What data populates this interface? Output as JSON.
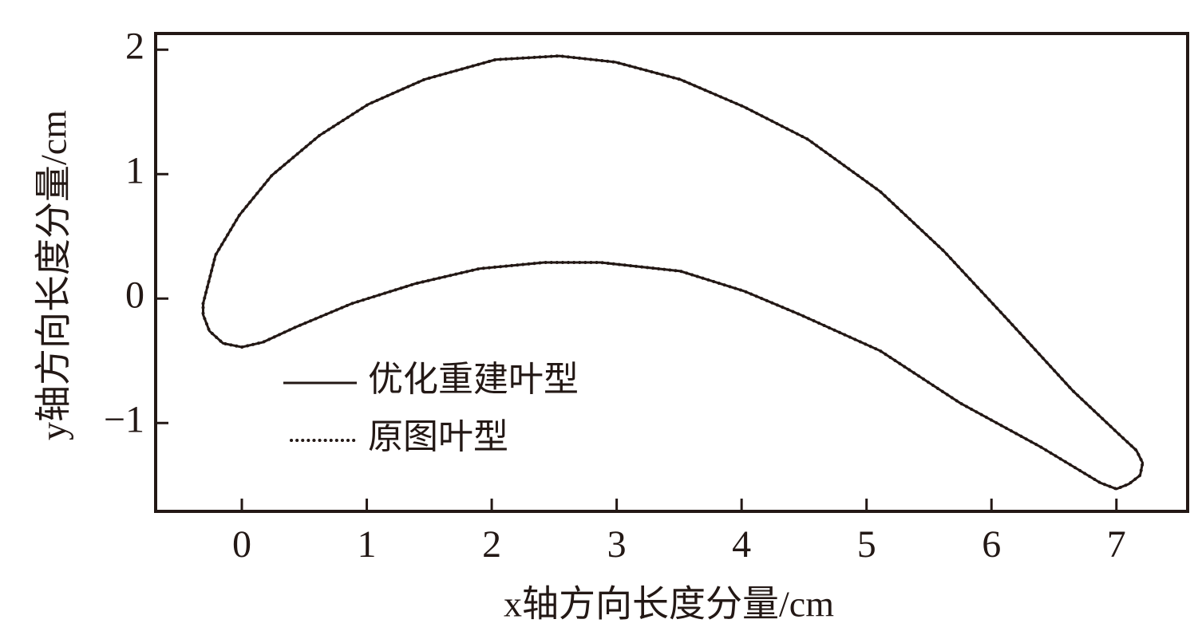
{
  "chart_data": {
    "type": "line",
    "x_label": "x轴方向长度分量/cm",
    "y_label": "y轴方向长度分量/cm",
    "xlim": [
      -0.69,
      7.57
    ],
    "ylim": [
      -1.71,
      2.13
    ],
    "xticks": [
      0,
      1,
      2,
      3,
      4,
      5,
      6,
      7
    ],
    "yticks": [
      {
        "value": -1,
        "label": "−1"
      },
      0,
      1,
      2
    ],
    "legend": "lower-left",
    "series": [
      {
        "name": "优化重建叶型",
        "color": "#231815",
        "style": "solid",
        "x": [
          -0.31,
          -0.21,
          -0.02,
          0.24,
          0.62,
          1.01,
          1.46,
          2.03,
          2.54,
          2.99,
          3.51,
          4.02,
          4.53,
          5.11,
          5.62,
          6.13,
          6.65,
          7.03,
          7.16,
          7.21,
          7.19,
          7.1,
          7.0,
          6.87,
          6.39,
          5.75,
          5.11,
          4.47,
          4.02,
          3.51,
          2.87,
          2.42,
          1.9,
          1.39,
          0.88,
          0.43,
          0.17,
          0,
          -0.15,
          -0.26,
          -0.31,
          -0.31
        ],
        "values": [
          -0.04,
          0.35,
          0.67,
          0.99,
          1.31,
          1.56,
          1.76,
          1.92,
          1.95,
          1.9,
          1.76,
          1.54,
          1.28,
          0.86,
          0.38,
          -0.17,
          -0.74,
          -1.1,
          -1.22,
          -1.32,
          -1.42,
          -1.49,
          -1.53,
          -1.48,
          -1.19,
          -0.84,
          -0.42,
          -0.13,
          0.06,
          0.22,
          0.29,
          0.29,
          0.24,
          0.12,
          -0.04,
          -0.23,
          -0.35,
          -0.39,
          -0.36,
          -0.26,
          -0.13,
          -0.04
        ]
      },
      {
        "name": "原图叶型",
        "color": "#231815",
        "style": "dotted",
        "x": [
          -0.31,
          -0.21,
          -0.02,
          0.24,
          0.62,
          1.01,
          1.46,
          2.03,
          2.54,
          2.99,
          3.51,
          4.02,
          4.53,
          5.11,
          5.62,
          6.13,
          6.65,
          7.03,
          7.16,
          7.21,
          7.19,
          7.1,
          7.0,
          6.87,
          6.39,
          5.75,
          5.11,
          4.47,
          4.02,
          3.51,
          2.87,
          2.42,
          1.9,
          1.39,
          0.88,
          0.43,
          0.17,
          0,
          -0.15,
          -0.26,
          -0.31,
          -0.31
        ],
        "values": [
          -0.04,
          0.35,
          0.67,
          0.99,
          1.31,
          1.56,
          1.76,
          1.92,
          1.95,
          1.9,
          1.76,
          1.54,
          1.28,
          0.86,
          0.38,
          -0.17,
          -0.74,
          -1.1,
          -1.22,
          -1.32,
          -1.42,
          -1.49,
          -1.53,
          -1.48,
          -1.19,
          -0.84,
          -0.42,
          -0.13,
          0.06,
          0.22,
          0.29,
          0.29,
          0.24,
          0.12,
          -0.04,
          -0.23,
          -0.35,
          -0.39,
          -0.36,
          -0.26,
          -0.13,
          -0.04
        ]
      }
    ]
  }
}
